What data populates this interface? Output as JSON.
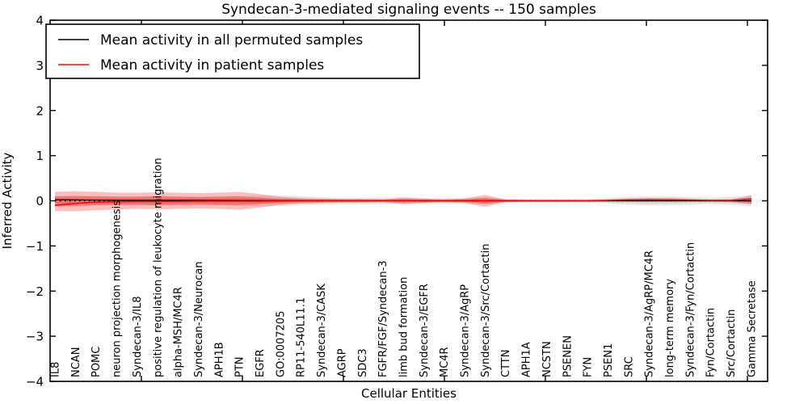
{
  "chart_data": {
    "type": "line",
    "title": "Syndecan-3-mediated signaling events -- 150 samples",
    "xlabel": "Cellular Entities",
    "ylabel": "Inferred Activity",
    "ylim": [
      -4,
      4
    ],
    "yticks": [
      -4,
      -3,
      -2,
      -1,
      0,
      1,
      2,
      3,
      4
    ],
    "ytick_labels": [
      "−4",
      "−3",
      "−2",
      "−1",
      "0",
      "1",
      "2",
      "3",
      "4"
    ],
    "grid": false,
    "legend_position": "upper left",
    "categories": [
      "IL8",
      "NCAN",
      "POMC",
      "neuron projection morphogenesis",
      "Syndecan-3/IL8",
      "positive regulation of leukocyte migration",
      "alpha-MSH/MC4R",
      "Syndecan-3/Neurocan",
      "APH1B",
      "PTN",
      "EGFR",
      "GO:0007205",
      "RP11-540L11.1",
      "Syndecan-3/CASK",
      "AGRP",
      "SDC3",
      "FGFR/FGF/Syndecan-3",
      "limb bud formation",
      "Syndecan-3/EGFR",
      "MC4R",
      "Syndecan-3/AgRP",
      "Syndecan-3/Src/Cortactin",
      "CTTN",
      "APH1A",
      "NCSTN",
      "PSENEN",
      "FYN",
      "PSEN1",
      "SRC",
      "Syndecan-3/AgRP/MC4R",
      "long-term memory",
      "Syndecan-3/Fyn/Cortactin",
      "Fyn/Cortactin",
      "Src/Cortactin",
      "Gamma Secretase"
    ],
    "legend": [
      {
        "label": "Mean activity in all permuted samples",
        "color": "#000000"
      },
      {
        "label": "Mean activity in patient samples",
        "color": "#ff0000"
      }
    ],
    "series": [
      {
        "name": "Mean activity in all permuted samples",
        "color": "#000000",
        "width": 1.3,
        "values": [
          0.025,
          0.02,
          0.015,
          0.01,
          0.01,
          0.01,
          0.01,
          0.01,
          0.008,
          0.006,
          0.005,
          0.004,
          0.003,
          0.002,
          0.002,
          0.002,
          0.002,
          0.002,
          0.001,
          0.001,
          0.001,
          0.001,
          0,
          0,
          0,
          0,
          0,
          0,
          0,
          0,
          0,
          0,
          0,
          0,
          0
        ]
      },
      {
        "name": "Mean activity in patient samples",
        "color": "#ff0000",
        "width": 1.5,
        "values": [
          -0.1,
          -0.06,
          -0.03,
          -0.02,
          -0.015,
          -0.015,
          -0.015,
          -0.01,
          -0.01,
          -0.01,
          -0.01,
          -0.005,
          0,
          0,
          0,
          0,
          0,
          0.005,
          0,
          0,
          0,
          0.005,
          0,
          0,
          0,
          0,
          0,
          0.01,
          0.02,
          0.025,
          0.02,
          0.015,
          0.01,
          0.01,
          0.04
        ]
      }
    ],
    "bands": [
      {
        "name": "permuted-std-band-outer",
        "color": "rgba(0,0,0,0.09)",
        "upper": [
          0.1,
          0.1,
          0.1,
          0.1,
          0.1,
          0.1,
          0.1,
          0.1,
          0.1,
          0.11,
          0.12,
          0.12,
          0.1,
          0.08,
          0.07,
          0.07,
          0.07,
          0.08,
          0.06,
          0.06,
          0.07,
          0.08,
          0.05,
          0.04,
          0.04,
          0.04,
          0.04,
          0.06,
          0.09,
          0.1,
          0.1,
          0.09,
          0.07,
          0.09,
          0.12
        ],
        "lower": [
          -0.1,
          -0.1,
          -0.1,
          -0.1,
          -0.1,
          -0.1,
          -0.1,
          -0.1,
          -0.1,
          -0.11,
          -0.12,
          -0.12,
          -0.1,
          -0.08,
          -0.07,
          -0.07,
          -0.07,
          -0.08,
          -0.06,
          -0.06,
          -0.07,
          -0.08,
          -0.05,
          -0.04,
          -0.04,
          -0.04,
          -0.04,
          -0.06,
          -0.09,
          -0.1,
          -0.1,
          -0.09,
          -0.07,
          -0.09,
          -0.12
        ]
      },
      {
        "name": "permuted-std-band-inner",
        "color": "rgba(0,0,0,0.09)",
        "upper": [
          0.055,
          0.055,
          0.055,
          0.055,
          0.055,
          0.055,
          0.055,
          0.055,
          0.055,
          0.06,
          0.066,
          0.066,
          0.055,
          0.044,
          0.039,
          0.039,
          0.039,
          0.044,
          0.033,
          0.033,
          0.039,
          0.044,
          0.028,
          0.022,
          0.022,
          0.022,
          0.022,
          0.033,
          0.05,
          0.055,
          0.055,
          0.05,
          0.039,
          0.05,
          0.066
        ],
        "lower": [
          -0.055,
          -0.055,
          -0.055,
          -0.055,
          -0.055,
          -0.055,
          -0.055,
          -0.055,
          -0.055,
          -0.06,
          -0.066,
          -0.066,
          -0.055,
          -0.044,
          -0.039,
          -0.039,
          -0.039,
          -0.044,
          -0.033,
          -0.033,
          -0.039,
          -0.044,
          -0.028,
          -0.022,
          -0.022,
          -0.022,
          -0.022,
          -0.033,
          -0.05,
          -0.055,
          -0.055,
          -0.05,
          -0.039,
          -0.05,
          -0.066
        ]
      },
      {
        "name": "patient-std-band-outer",
        "color": "rgba(255,0,0,0.25)",
        "upper": [
          0.2,
          0.21,
          0.2,
          0.18,
          0.18,
          0.19,
          0.18,
          0.17,
          0.18,
          0.2,
          0.15,
          0.09,
          0.06,
          0.05,
          0.04,
          0.04,
          0.03,
          0.07,
          0.05,
          0.03,
          0.05,
          0.13,
          0.03,
          0.02,
          0.02,
          0.02,
          0.02,
          0.03,
          0.05,
          0.06,
          0.06,
          0.04,
          0.02,
          0.03,
          0.12
        ],
        "lower": [
          -0.23,
          -0.23,
          -0.21,
          -0.19,
          -0.18,
          -0.19,
          -0.18,
          -0.17,
          -0.18,
          -0.2,
          -0.15,
          -0.09,
          -0.06,
          -0.05,
          -0.04,
          -0.04,
          -0.03,
          -0.07,
          -0.05,
          -0.03,
          -0.05,
          -0.13,
          -0.03,
          -0.02,
          -0.02,
          -0.02,
          -0.02,
          -0.02,
          -0.02,
          -0.02,
          -0.02,
          -0.02,
          -0.02,
          -0.03,
          -0.08
        ]
      },
      {
        "name": "patient-std-band-inner",
        "color": "rgba(255,0,0,0.3)",
        "upper": [
          0.1,
          0.11,
          0.1,
          0.09,
          0.09,
          0.1,
          0.09,
          0.08,
          0.09,
          0.1,
          0.07,
          0.04,
          0.03,
          0.025,
          0.02,
          0.02,
          0.015,
          0.035,
          0.025,
          0.015,
          0.025,
          0.065,
          0.015,
          0.01,
          0.01,
          0.01,
          0.01,
          0.015,
          0.025,
          0.03,
          0.03,
          0.02,
          0.01,
          0.015,
          0.06
        ],
        "lower": [
          -0.12,
          -0.12,
          -0.1,
          -0.09,
          -0.09,
          -0.1,
          -0.09,
          -0.08,
          -0.09,
          -0.1,
          -0.07,
          -0.04,
          -0.03,
          -0.025,
          -0.02,
          -0.02,
          -0.015,
          -0.035,
          -0.025,
          -0.015,
          -0.025,
          -0.065,
          -0.015,
          -0.01,
          -0.01,
          -0.01,
          -0.01,
          -0.01,
          -0.01,
          -0.01,
          -0.01,
          -0.01,
          -0.01,
          -0.015,
          -0.04
        ]
      }
    ],
    "zero_line": {
      "value": 0,
      "style": "dotted",
      "color": "#000000"
    }
  },
  "colors": {
    "background": "#ffffff",
    "axis": "#000000",
    "permuted_line": "#000000",
    "patient_line": "#ff0000"
  }
}
